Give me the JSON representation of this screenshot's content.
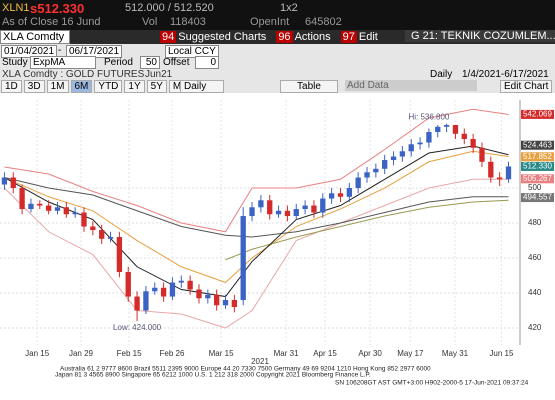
{
  "header": {
    "ticker": "XLN1",
    "last": "s512.330",
    "bid_ask": "512.000 / 512.520",
    "size": "1x2",
    "as_of": "As of Close 16 Jund",
    "vol_label": "Vol",
    "vol": "118403",
    "oi_label": "OpenInt",
    "oi": "645802"
  },
  "toolbar": {
    "security": "XLA Comdty",
    "buttons": [
      {
        "num": "94",
        "label": "Suggested Charts"
      },
      {
        "num": "96",
        "label": "Actions"
      },
      {
        "num": "97",
        "label": "Edit"
      }
    ],
    "page": "G 21: TEKNIK COZUMLEM..."
  },
  "dates": {
    "start": "01/04/2021",
    "end": "06/17/2021",
    "currency": "Local CCY"
  },
  "study": {
    "label": "Study",
    "name": "ExpMA",
    "period_label": "Period",
    "period": "50",
    "offset_label": "Offset",
    "offset": "0"
  },
  "info": {
    "title": "XLA Comdty : GOLD FUTURES",
    "contract": "Jun21",
    "freq": "Daily",
    "range": "1/4/2021-6/17/2021"
  },
  "ranges": [
    "1D",
    "3D",
    "1M",
    "6M",
    "YTD",
    "1Y",
    "5Y",
    "Max"
  ],
  "period_select": "Daily",
  "table": "Table",
  "add_data": "Add Data",
  "edit_chart": "Edit Chart",
  "chart_data": {
    "type": "candlestick",
    "up_color": "#3b63c4",
    "down_color": "#d42a2a",
    "grid": true,
    "open": [
      502,
      506,
      500,
      488,
      491,
      490,
      487,
      489,
      485,
      486,
      478,
      476,
      471,
      472,
      452,
      438,
      430,
      441,
      443,
      438,
      446,
      447,
      442,
      437,
      439,
      433,
      436,
      436,
      484,
      489,
      493,
      485,
      487,
      484,
      488,
      490,
      486,
      494,
      497,
      495,
      500,
      506,
      509,
      511,
      516,
      518,
      521,
      525,
      526,
      532,
      535,
      536,
      531,
      528,
      523,
      515,
      506,
      505
    ],
    "high": [
      509,
      509,
      502,
      494,
      493,
      493,
      492,
      492,
      489,
      489,
      481,
      479,
      475,
      475,
      455,
      441,
      444,
      446,
      446,
      449,
      450,
      450,
      445,
      442,
      442,
      439,
      439,
      489,
      492,
      496,
      496,
      490,
      490,
      491,
      493,
      493,
      497,
      500,
      500,
      503,
      509,
      512,
      514,
      519,
      521,
      524,
      528,
      529,
      534,
      536,
      536.8,
      536,
      534,
      531,
      526,
      518,
      509,
      515
    ],
    "low": [
      499,
      497,
      485,
      486,
      488,
      485,
      485,
      483,
      483,
      475,
      473,
      468,
      469,
      449,
      435,
      424,
      428,
      439,
      435,
      436,
      443,
      439,
      434,
      434,
      430,
      431,
      429,
      433,
      481,
      486,
      482,
      483,
      481,
      482,
      485,
      483,
      483,
      491,
      492,
      492,
      497,
      503,
      506,
      508,
      513,
      515,
      518,
      522,
      523,
      529,
      532,
      528,
      525,
      520,
      512,
      503,
      501,
      503
    ],
    "close": [
      506,
      500,
      488,
      491,
      490,
      487,
      489,
      485,
      486,
      478,
      476,
      471,
      472,
      452,
      438,
      430,
      441,
      443,
      438,
      446,
      447,
      442,
      437,
      439,
      433,
      436,
      432,
      484,
      489,
      493,
      485,
      487,
      484,
      488,
      490,
      486,
      494,
      497,
      495,
      500,
      506,
      509,
      511,
      516,
      518,
      521,
      525,
      526,
      532,
      535,
      536,
      531,
      528,
      523,
      515,
      506,
      505,
      512.33
    ],
    "lines": {
      "x": [
        0,
        5,
        10,
        15,
        20,
        25,
        28,
        33,
        38,
        43,
        48,
        53,
        57
      ],
      "series": [
        {
          "color": "#e88080",
          "values": [
            512,
            508,
            498,
            490,
            480,
            475,
            500,
            500,
            505,
            522,
            540,
            545,
            542
          ]
        },
        {
          "color": "#e8a8a8",
          "values": [
            500,
            475,
            462,
            430,
            428,
            420,
            430,
            470,
            480,
            490,
            500,
            505,
            505
          ]
        },
        {
          "color": "#e8a040",
          "values": [
            506,
            495,
            487,
            470,
            455,
            446,
            460,
            478,
            488,
            500,
            515,
            521,
            518
          ]
        },
        {
          "color": "#9a9a50",
          "values": [
            null,
            null,
            null,
            null,
            null,
            459,
            465,
            472,
            478,
            484,
            489,
            492,
            493
          ]
        },
        {
          "color": "#555555",
          "values": [
            506,
            500,
            496,
            487,
            478,
            473,
            472,
            475,
            480,
            486,
            492,
            495,
            495
          ]
        },
        {
          "color": "#222222",
          "values": [
            506,
            492,
            482,
            455,
            442,
            438,
            458,
            482,
            490,
            505,
            520,
            524,
            519
          ]
        }
      ]
    },
    "annotations": [
      {
        "text": "Hi: 536.800",
        "x": 48,
        "y": 536.8
      },
      {
        "text": "Low: 424.000",
        "x": 15,
        "y": 424
      }
    ],
    "last_values": [
      {
        "value": 542.069,
        "label": "542.069",
        "color": "#d42a2a"
      },
      {
        "value": 524.463,
        "label": "524.463",
        "color": "#444444"
      },
      {
        "value": 517.852,
        "label": "517.852",
        "color": "#e8a040"
      },
      {
        "value": 512.33,
        "label": "512.330",
        "color": "#2a8a8a"
      },
      {
        "value": 505.267,
        "label": "505.267",
        "color": "#e88080"
      },
      {
        "value": 494.557,
        "label": "494.557",
        "color": "#777777"
      }
    ],
    "xlim": [
      -0.5,
      58.3
    ],
    "ylim": [
      410.3,
      550.3
    ],
    "yticks": [
      420,
      440,
      460,
      480,
      500
    ],
    "xticks": [
      {
        "value": 3.7,
        "label": "Jan 15"
      },
      {
        "value": 8.66,
        "label": "Jan 29"
      },
      {
        "value": 14.1,
        "label": "Feb 15"
      },
      {
        "value": 18.95,
        "label": "Feb 26"
      },
      {
        "value": 24.5,
        "label": "Mar 15"
      },
      {
        "value": 31.85,
        "label": "Mar 31"
      },
      {
        "value": 36.25,
        "label": "Apr 15"
      },
      {
        "value": 41.35,
        "label": "Apr 30"
      },
      {
        "value": 45.9,
        "label": "May 17"
      },
      {
        "value": 50.95,
        "label": "May 31"
      },
      {
        "value": 56.2,
        "label": "Jun 15"
      }
    ],
    "x_year": "2021"
  },
  "footer": [
    "Australia 61 2 9777 8600 Brazil 5511 2395 9000 Europe 44 20 7330 7500 Germany 49 69 9204 1210 Hong Kong 852 2977 6000",
    "Japan 81 3 4565 8900 Singapore 65 6212 1000 U.S. 1 212 318 2000 Copyright 2021 Bloomberg Finance L.P.",
    "SN 106208GT AST GMT+3:00 H902-2000-5 17-Jun-2021 09:37:24"
  ]
}
